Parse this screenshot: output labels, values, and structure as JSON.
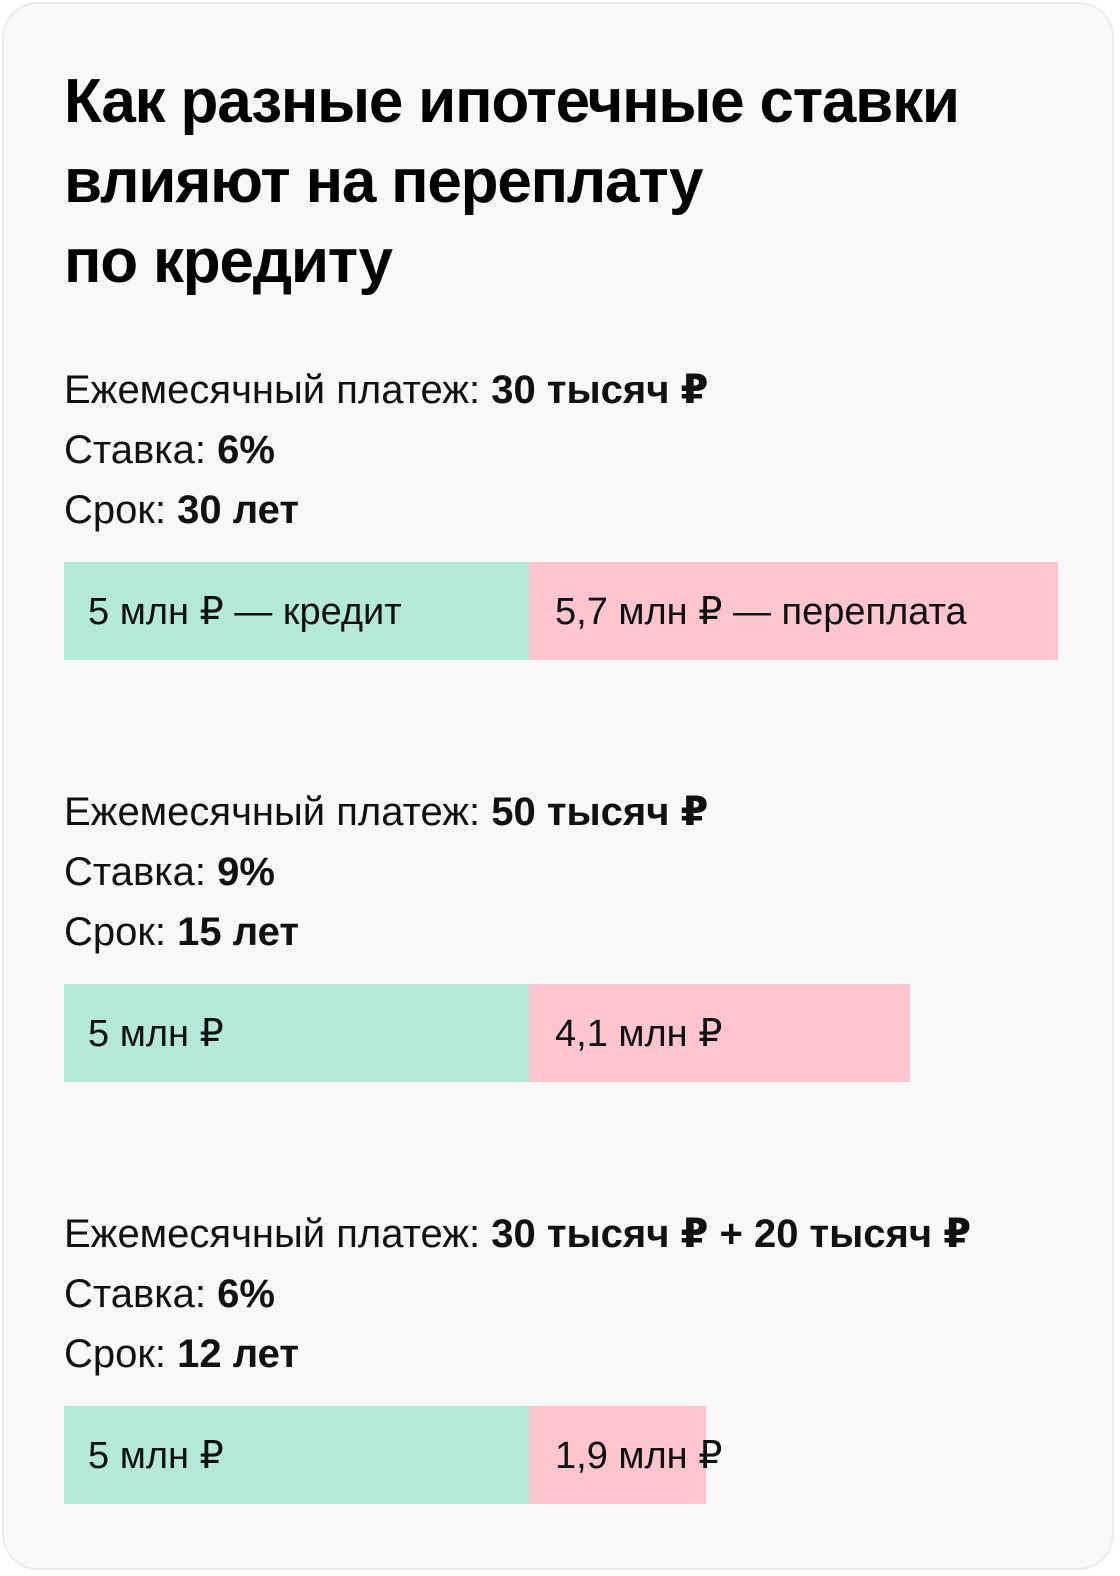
{
  "title_lines": [
    "Как разные ипотечные ставки",
    "влияют на переплату",
    "по кредиту"
  ],
  "labels": {
    "payment": "Ежемесячный платеж: ",
    "rate": "Ставка: ",
    "term": "Срок: "
  },
  "colors": {
    "credit": "#b4e8d9",
    "overpayment": "#fdc6cf",
    "background": "#f8f8f8"
  },
  "chart_data": {
    "type": "bar",
    "orientation": "horizontal",
    "stacked": true,
    "unit": "млн ₽",
    "scenarios": [
      {
        "payment": "30 тысяч ₽",
        "rate": "6%",
        "term": "30 лет",
        "credit_value": 5,
        "overpayment_value": 5.7,
        "credit_label": "5 млн ₽ — кредит",
        "overpayment_label": "5,7 млн ₽ — переплата"
      },
      {
        "payment": "50 тысяч ₽",
        "rate": "9%",
        "term": "15 лет",
        "credit_value": 5,
        "overpayment_value": 4.1,
        "credit_label": "5 млн ₽",
        "overpayment_label": "4,1 млн ₽"
      },
      {
        "payment": "30 тысяч ₽ + 20 тысяч ₽",
        "rate": "6%",
        "term": "12 лет",
        "credit_value": 5,
        "overpayment_value": 1.9,
        "credit_label": "5 млн ₽",
        "overpayment_label": "1,9 млн ₽"
      }
    ]
  }
}
